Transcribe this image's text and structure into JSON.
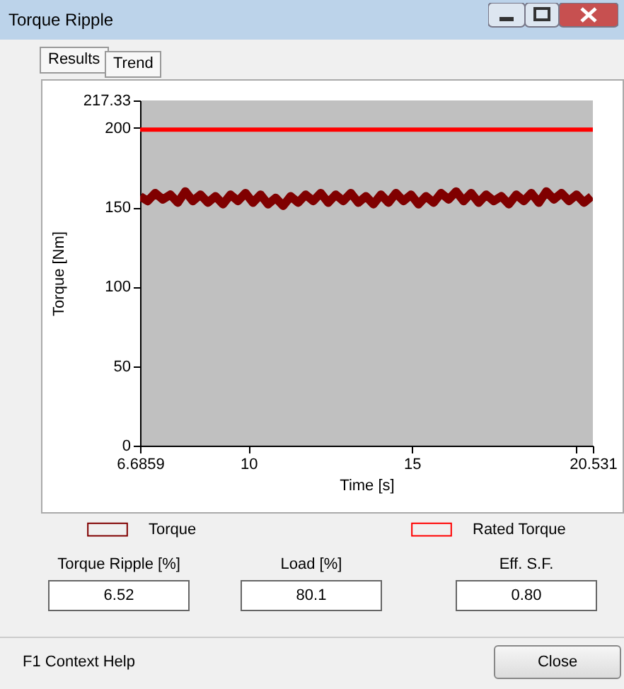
{
  "chart_data": {
    "type": "line",
    "title": "Torque Ripple",
    "xlabel": "Time [s]",
    "ylabel": "Torque [Nm]",
    "xlim": [
      6.6859,
      20.531
    ],
    "xticks": [
      6.6859,
      10,
      15,
      {
        "value": 20,
        "label": null
      },
      20.531
    ],
    "ylim": [
      0,
      217.33
    ],
    "yticks": [
      0,
      50,
      100,
      150,
      200,
      217.33
    ],
    "grid": false,
    "legend": "bottom",
    "series": [
      {
        "name": "Torque",
        "color": "#800000",
        "x": [
          6.69,
          6.92,
          7.15,
          7.38,
          7.61,
          7.84,
          8.07,
          8.3,
          8.53,
          8.76,
          8.99,
          9.22,
          9.45,
          9.68,
          9.91,
          10.14,
          10.37,
          10.6,
          10.83,
          11.06,
          11.29,
          11.52,
          11.75,
          11.98,
          12.21,
          12.44,
          12.67,
          12.9,
          13.13,
          13.36,
          13.59,
          13.82,
          14.05,
          14.28,
          14.51,
          14.74,
          14.97,
          15.2,
          15.43,
          15.66,
          15.89,
          16.12,
          16.35,
          16.58,
          16.81,
          17.04,
          17.27,
          17.5,
          17.73,
          17.96,
          18.19,
          18.42,
          18.65,
          18.88,
          19.11,
          19.34,
          19.57,
          19.8,
          20.03,
          20.26,
          20.49
        ],
        "values": [
          157,
          154,
          159,
          155,
          158,
          153,
          160,
          154,
          158,
          153,
          157,
          152,
          158,
          154,
          159,
          153,
          158,
          152,
          156,
          151,
          157,
          153,
          158,
          154,
          159,
          153,
          158,
          154,
          159,
          153,
          157,
          152,
          158,
          153,
          159,
          154,
          158,
          152,
          157,
          153,
          159,
          155,
          160,
          154,
          159,
          153,
          158,
          154,
          157,
          152,
          158,
          154,
          159,
          153,
          160,
          155,
          159,
          154,
          158,
          153,
          157
        ]
      },
      {
        "name": "Rated Torque",
        "color": "#ff0000",
        "x": [
          6.6859,
          20.531
        ],
        "values": [
          199,
          199
        ]
      }
    ],
    "annotations": [
      "Results",
      "Trend",
      "Torque Ripple [%]",
      "6.52",
      "Load [%]",
      "80.1",
      "Eff. S.F.",
      "0.80",
      "F1 Context Help",
      "Close"
    ]
  }
}
